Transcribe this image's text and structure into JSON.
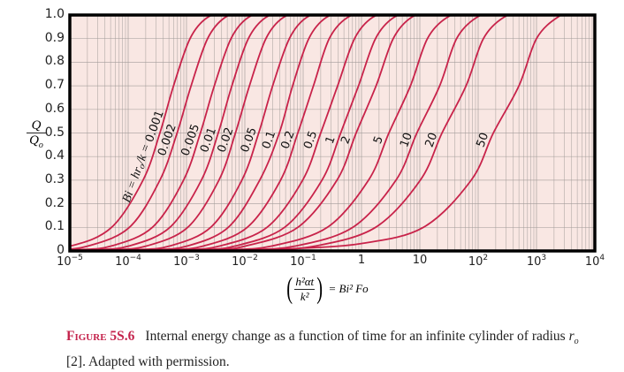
{
  "chart_data": {
    "type": "line",
    "x_scale": "log",
    "xlim": [
      1e-05,
      10000.0
    ],
    "ylim": [
      0,
      1.0
    ],
    "grid": true,
    "colors": {
      "curve": "#c8234a",
      "background": "#f9e7e3",
      "grid": "#a09a98",
      "frame": "#000000",
      "caption_label": "#c4234c"
    },
    "x_ticks": [
      {
        "base": "10",
        "exp": "−5"
      },
      {
        "base": "10",
        "exp": "−4"
      },
      {
        "base": "10",
        "exp": "−3"
      },
      {
        "base": "10",
        "exp": "−2"
      },
      {
        "base": "10",
        "exp": "−1"
      },
      {
        "base": "1",
        "exp": ""
      },
      {
        "base": "10",
        "exp": ""
      },
      {
        "base": "10",
        "exp": "2"
      },
      {
        "base": "10",
        "exp": "3"
      },
      {
        "base": "10",
        "exp": "4"
      }
    ],
    "y_ticks": [
      "0",
      "0.1",
      "0.2",
      "0.3",
      "0.4",
      "0.5",
      "0.6",
      "0.7",
      "0.8",
      "0.9",
      "1.0"
    ],
    "ylabel": {
      "num": "Q",
      "den": "Q",
      "den_sub": "o"
    },
    "xlabel": {
      "num": "h²αt",
      "den": "k²",
      "rhs": "= Bi² Fo"
    },
    "series_label_prefix": {
      "a": "Bi = hr",
      "sub": "o",
      "b": "/k = "
    },
    "series": [
      {
        "name": "0.001",
        "points": [
          [
            1e-05,
            0.02
          ],
          [
            5.2e-05,
            0.1
          ],
          [
            0.00018,
            0.3
          ],
          [
            0.00035,
            0.5
          ],
          [
            0.0006,
            0.7
          ],
          [
            0.00115,
            0.9
          ],
          [
            0.0023,
            0.99
          ],
          [
            0.0046,
            1.0
          ]
        ]
      },
      {
        "name": "0.002",
        "points": [
          [
            5e-06,
            0.005
          ],
          [
            2e-05,
            0.02
          ],
          [
            0.000105,
            0.1
          ],
          [
            0.00035,
            0.3
          ],
          [
            0.00069,
            0.5
          ],
          [
            0.0012,
            0.7
          ],
          [
            0.0023,
            0.9
          ],
          [
            0.0046,
            0.99
          ],
          [
            0.0092,
            1.0
          ]
        ]
      },
      {
        "name": "0.005",
        "points": [
          [
            1.25e-05,
            0.005
          ],
          [
            5e-05,
            0.02
          ],
          [
            0.00026,
            0.1
          ],
          [
            0.00089,
            0.3
          ],
          [
            0.00173,
            0.5
          ],
          [
            0.003,
            0.7
          ],
          [
            0.0058,
            0.9
          ],
          [
            0.0115,
            0.99
          ],
          [
            0.023,
            1.0
          ]
        ]
      },
      {
        "name": "0.01",
        "points": [
          [
            2.5e-05,
            0.005
          ],
          [
            0.0001,
            0.02
          ],
          [
            0.00052,
            0.1
          ],
          [
            0.0018,
            0.3
          ],
          [
            0.0035,
            0.5
          ],
          [
            0.006,
            0.7
          ],
          [
            0.0115,
            0.9
          ],
          [
            0.023,
            0.99
          ],
          [
            0.046,
            1.0
          ]
        ]
      },
      {
        "name": "0.02",
        "points": [
          [
            5e-05,
            0.005
          ],
          [
            0.0002,
            0.02
          ],
          [
            0.00105,
            0.1
          ],
          [
            0.0036,
            0.3
          ],
          [
            0.0069,
            0.5
          ],
          [
            0.012,
            0.7
          ],
          [
            0.023,
            0.9
          ],
          [
            0.046,
            0.99
          ],
          [
            0.092,
            1.0
          ]
        ]
      },
      {
        "name": "0.05",
        "points": [
          [
            0.000125,
            0.005
          ],
          [
            0.0005,
            0.02
          ],
          [
            0.0026,
            0.1
          ],
          [
            0.0089,
            0.3
          ],
          [
            0.0173,
            0.5
          ],
          [
            0.03,
            0.7
          ],
          [
            0.058,
            0.9
          ],
          [
            0.115,
            0.99
          ],
          [
            0.23,
            1.0
          ]
        ]
      },
      {
        "name": "0.1",
        "points": [
          [
            0.00025,
            0.005
          ],
          [
            0.001,
            0.02
          ],
          [
            0.0052,
            0.1
          ],
          [
            0.018,
            0.3
          ],
          [
            0.039,
            0.5
          ],
          [
            0.066,
            0.7
          ],
          [
            0.125,
            0.9
          ],
          [
            0.25,
            0.99
          ],
          [
            0.5,
            1.0
          ]
        ]
      },
      {
        "name": "0.2",
        "points": [
          [
            0.00048,
            0.005
          ],
          [
            0.0019,
            0.02
          ],
          [
            0.011,
            0.1
          ],
          [
            0.041,
            0.3
          ],
          [
            0.081,
            0.5
          ],
          [
            0.15,
            0.7
          ],
          [
            0.28,
            0.9
          ],
          [
            0.58,
            0.99
          ],
          [
            1.2,
            1.0
          ]
        ]
      },
      {
        "name": "0.5",
        "points": [
          [
            0.0009,
            0.005
          ],
          [
            0.0036,
            0.02
          ],
          [
            0.024,
            0.1
          ],
          [
            0.098,
            0.3
          ],
          [
            0.2,
            0.5
          ],
          [
            0.39,
            0.7
          ],
          [
            0.76,
            0.9
          ],
          [
            1.55,
            0.99
          ],
          [
            3.1,
            1.0
          ]
        ]
      },
      {
        "name": "1",
        "points": [
          [
            0.00165,
            0.005
          ],
          [
            0.0066,
            0.02
          ],
          [
            0.048,
            0.1
          ],
          [
            0.21,
            0.3
          ],
          [
            0.44,
            0.5
          ],
          [
            0.89,
            0.7
          ],
          [
            1.74,
            0.9
          ],
          [
            3.6,
            0.99
          ],
          [
            7.2,
            1.0
          ]
        ]
      },
      {
        "name": "2",
        "points": [
          [
            0.0025,
            0.005
          ],
          [
            0.01,
            0.02
          ],
          [
            0.081,
            0.1
          ],
          [
            0.38,
            0.3
          ],
          [
            0.81,
            0.5
          ],
          [
            1.78,
            0.7
          ],
          [
            3.5,
            0.9
          ],
          [
            7.2,
            0.99
          ],
          [
            14.4,
            1.0
          ]
        ]
      },
      {
        "name": "5",
        "points": [
          [
            0.005,
            0.005
          ],
          [
            0.028,
            0.02
          ],
          [
            0.26,
            0.1
          ],
          [
            1.32,
            0.3
          ],
          [
            2.95,
            0.5
          ],
          [
            6.9,
            0.7
          ],
          [
            13.5,
            0.9
          ],
          [
            29.5,
            0.99
          ],
          [
            59,
            1.0
          ]
        ]
      },
      {
        "name": "10",
        "points": [
          [
            0.01,
            0.005
          ],
          [
            0.071,
            0.02
          ],
          [
            0.71,
            0.1
          ],
          [
            3.9,
            0.3
          ],
          [
            8.9,
            0.5
          ],
          [
            21.9,
            0.7
          ],
          [
            42.7,
            0.9
          ],
          [
            95,
            0.99
          ],
          [
            190,
            1.0
          ]
        ]
      },
      {
        "name": "20",
        "points": [
          [
            0.02,
            0.005
          ],
          [
            0.155,
            0.02
          ],
          [
            1.74,
            0.1
          ],
          [
            10.2,
            0.3
          ],
          [
            24,
            0.5
          ],
          [
            62,
            0.7
          ],
          [
            123,
            0.9
          ],
          [
            275,
            0.99
          ],
          [
            550,
            1.0
          ]
        ]
      },
      {
        "name": "50",
        "points": [
          [
            0.05,
            0.008
          ],
          [
            0.91,
            0.03
          ],
          [
            11.5,
            0.1
          ],
          [
            76,
            0.3
          ],
          [
            182,
            0.5
          ],
          [
            500,
            0.7
          ],
          [
            1000,
            0.9
          ],
          [
            2290,
            0.99
          ],
          [
            4000,
            1.0
          ]
        ]
      }
    ]
  },
  "caption": {
    "label": "Figure 5S.6",
    "text_a": "Internal energy change as a function of time for an infinite cylinder of radius ",
    "var": "r",
    "var_sub": "o",
    "text_b": " [2]. Adapted with permission."
  }
}
